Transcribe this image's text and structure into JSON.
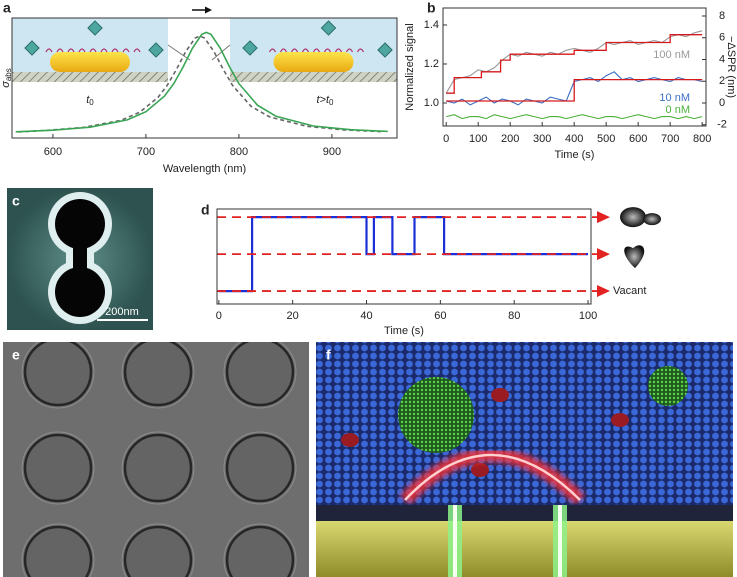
{
  "chart_data": [
    {
      "type": "line",
      "panel_label": "a",
      "xlabel": "Wavelength (nm)",
      "ylabel": "σ",
      "ylabel_sub": "abs",
      "inset_labels": [
        {
          "main": "t",
          "sub": "0"
        },
        {
          "main": "t>t",
          "sub": "0"
        }
      ],
      "xlim": [
        556,
        970
      ],
      "ylim": [
        0,
        1.08
      ],
      "xticks": [
        600,
        700,
        800,
        900
      ],
      "series": [
        {
          "color": "#666666",
          "dash": true,
          "x": [
            563,
            593,
            633,
            673,
            693,
            713,
            723,
            733,
            743,
            753,
            758,
            763,
            773,
            783,
            793,
            813,
            833,
            873,
            913,
            953
          ],
          "values": [
            0.055,
            0.068,
            0.095,
            0.158,
            0.23,
            0.365,
            0.475,
            0.62,
            0.78,
            0.9,
            0.918,
            0.9,
            0.78,
            0.62,
            0.475,
            0.285,
            0.19,
            0.105,
            0.073,
            0.058
          ]
        },
        {
          "color": "#3aa655",
          "x": [
            560,
            600,
            640,
            680,
            700,
            720,
            730,
            740,
            750,
            760,
            765,
            770,
            780,
            790,
            800,
            820,
            840,
            880,
            920,
            960
          ],
          "values": [
            0.056,
            0.07,
            0.097,
            0.163,
            0.237,
            0.377,
            0.49,
            0.639,
            0.807,
            0.932,
            0.95,
            0.932,
            0.807,
            0.639,
            0.49,
            0.295,
            0.195,
            0.108,
            0.075,
            0.059
          ]
        }
      ]
    },
    {
      "type": "line",
      "panel_label": "b",
      "xlabel": "Time (s)",
      "ylabel": "Normalized signal",
      "y2label": "−ΔSPR (nm)",
      "xlim": [
        -10,
        812
      ],
      "ylim": [
        0.882,
        1.487
      ],
      "y2lim": [
        -2.115,
        8.736
      ],
      "xticks": [
        0,
        100,
        200,
        300,
        400,
        500,
        600,
        700,
        800
      ],
      "yticks": [
        {
          "value": 1.0,
          "label": "1.0"
        },
        1.2,
        1.4
      ],
      "y2ticks": [
        -2,
        0,
        2,
        4,
        6,
        8
      ],
      "x": [
        0,
        25,
        50,
        75,
        100,
        125,
        150,
        175,
        200,
        225,
        250,
        275,
        300,
        325,
        350,
        375,
        400,
        425,
        450,
        475,
        500,
        525,
        550,
        575,
        600,
        625,
        650,
        675,
        700,
        725,
        750,
        775,
        800
      ],
      "series": [
        {
          "name": "100 nM",
          "color": "#999999",
          "values": [
            1.05,
            1.12,
            1.13,
            1.14,
            1.17,
            1.16,
            1.18,
            1.22,
            1.25,
            1.24,
            1.26,
            1.25,
            1.24,
            1.26,
            1.25,
            1.27,
            1.28,
            1.27,
            1.26,
            1.28,
            1.31,
            1.3,
            1.31,
            1.32,
            1.3,
            1.31,
            1.32,
            1.31,
            1.34,
            1.35,
            1.34,
            1.36,
            1.37
          ]
        },
        {
          "name": "10 nM",
          "color": "#3a6fc4",
          "values": [
            1.01,
            1.0,
            1.02,
            0.99,
            1.01,
            1.03,
            1.0,
            1.02,
            1.01,
            0.99,
            1.02,
            1.01,
            1.0,
            1.03,
            1.02,
            1.01,
            1.11,
            1.12,
            1.13,
            1.11,
            1.14,
            1.16,
            1.12,
            1.13,
            1.11,
            1.12,
            1.13,
            1.12,
            1.11,
            1.13,
            1.12,
            1.12,
            1.11
          ]
        },
        {
          "name": "0 nM",
          "color": "#4caf3a",
          "values": [
            0.93,
            0.94,
            0.92,
            0.93,
            0.93,
            0.92,
            0.94,
            0.93,
            0.92,
            0.93,
            0.94,
            0.93,
            0.92,
            0.93,
            0.93,
            0.92,
            0.93,
            0.94,
            0.93,
            0.92,
            0.93,
            0.93,
            0.92,
            0.93,
            0.94,
            0.93,
            0.92,
            0.93,
            0.93,
            0.92,
            0.93,
            0.92,
            0.93
          ]
        }
      ],
      "fits": [
        {
          "color": "#d7191c",
          "x": [
            0,
            25,
            25,
            110,
            110,
            170,
            170,
            200,
            200,
            400,
            400,
            500,
            500,
            700,
            700,
            800
          ],
          "values": [
            1.05,
            1.05,
            1.13,
            1.13,
            1.16,
            1.16,
            1.22,
            1.22,
            1.25,
            1.25,
            1.27,
            1.27,
            1.31,
            1.31,
            1.35,
            1.35
          ]
        },
        {
          "color": "#d7191c",
          "x": [
            0,
            400,
            400,
            800
          ],
          "values": [
            1.01,
            1.01,
            1.12,
            1.12
          ]
        }
      ]
    },
    {
      "type": "line",
      "panel_label": "d",
      "xlabel": "Time (s)",
      "xlim": [
        -0.5,
        100.8
      ],
      "ylim": [
        -0.35,
        2.22
      ],
      "xticks": [
        0,
        20,
        40,
        60,
        80,
        100
      ],
      "levels": [
        0,
        1,
        2
      ],
      "level_color": "#e32222",
      "vacant_label": "Vacant",
      "series": [
        {
          "color": "#1a2fd8",
          "x": [
            0,
            9,
            9,
            40,
            40,
            42,
            42,
            47,
            47,
            53,
            53,
            61,
            61,
            100
          ],
          "values": [
            0,
            0,
            2,
            2,
            1,
            1,
            2,
            2,
            1,
            1,
            2,
            2,
            1,
            1
          ]
        }
      ]
    }
  ],
  "images": [
    {
      "panel_label": "c",
      "scale_bar": "200nm"
    },
    {
      "panel_label": "e"
    },
    {
      "panel_label": "f"
    }
  ]
}
